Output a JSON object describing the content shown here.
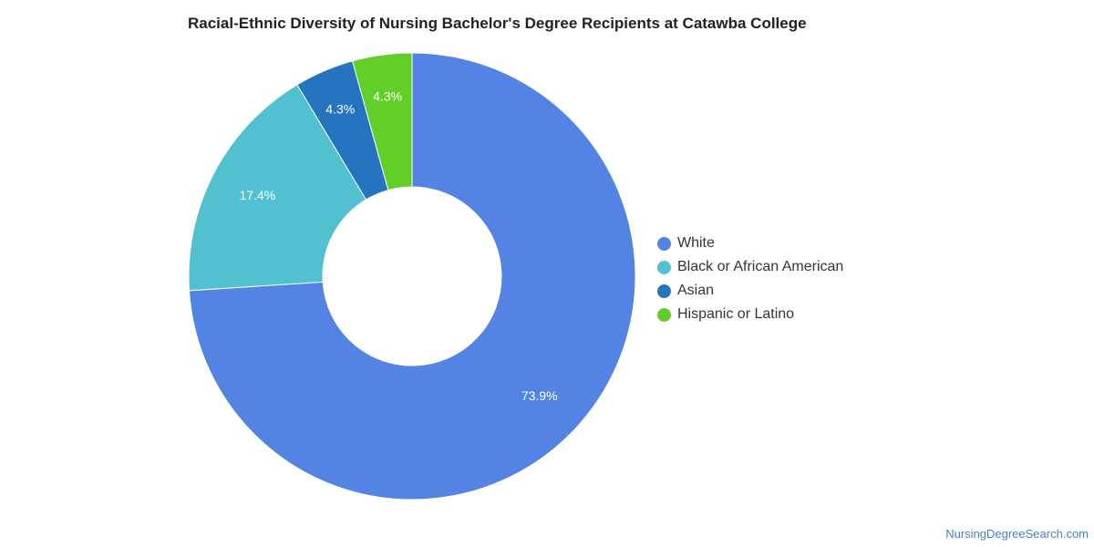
{
  "chart_data": {
    "type": "pie",
    "title": "Racial-Ethnic Diversity of Nursing Bachelor's Degree Recipients at Catawba College",
    "donut": true,
    "legend_position": "right",
    "categories": [
      "White",
      "Black or African American",
      "Asian",
      "Hispanic or Latino"
    ],
    "values": [
      73.9,
      17.4,
      4.3,
      4.3
    ],
    "labels": [
      "73.9%",
      "17.4%",
      "4.3%",
      "4.3%"
    ],
    "colors": [
      "#5484e3",
      "#52c1cf",
      "#2474c0",
      "#62cf29"
    ]
  },
  "source": "NursingDegreeSearch.com"
}
